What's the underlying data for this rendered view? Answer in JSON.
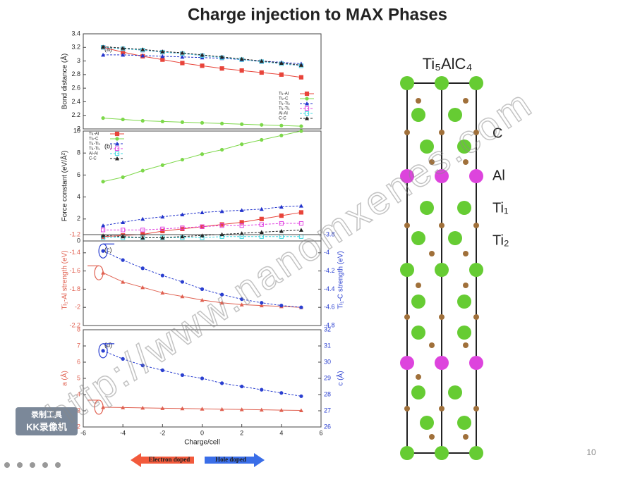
{
  "title": "Charge injection to MAX Phases",
  "structure": {
    "formula": "Ti₅AlC₄",
    "labels": [
      "C",
      "Al",
      "Ti₁",
      "Ti₂"
    ]
  },
  "watermark": "http://www.nanomxenes.com",
  "recorder": [
    "录制工具",
    "KK录像机"
  ],
  "doping": {
    "left": "Electron doped",
    "right": "Hole doped"
  },
  "page_number": 10,
  "chart_data": [
    {
      "type": "line",
      "panel": "(a)",
      "ylabel": "Bond distance (Å)",
      "legend": "lower right",
      "x": [
        -5,
        -4,
        -3,
        -2,
        -1,
        0,
        1,
        2,
        3,
        4,
        5
      ],
      "xlim": [
        -6,
        6
      ],
      "ylim": [
        2,
        3.4
      ],
      "yticks": [
        2,
        2.2,
        2.4,
        2.6,
        2.8,
        3,
        3.2,
        3.4
      ],
      "series": [
        {
          "name": "Ti₁-Al",
          "color": "#e8443a",
          "marker": "square",
          "dashed": false,
          "values": [
            3.2,
            3.13,
            3.07,
            3.02,
            2.97,
            2.93,
            2.89,
            2.86,
            2.83,
            2.8,
            2.76
          ]
        },
        {
          "name": "Ti₂-C",
          "color": "#7dd84a",
          "marker": "circle",
          "dashed": false,
          "values": [
            2.16,
            2.14,
            2.12,
            2.11,
            2.1,
            2.09,
            2.08,
            2.07,
            2.06,
            2.05,
            2.04
          ]
        },
        {
          "name": "Ti₁-Ti₂",
          "color": "#2233cc",
          "marker": "triangle",
          "dashed": true,
          "values": [
            3.09,
            3.09,
            3.08,
            3.07,
            3.06,
            3.05,
            3.04,
            3.02,
            3,
            2.98,
            2.96
          ]
        },
        {
          "name": "Ti₁-Ti₁",
          "color": "#e040e0",
          "marker": "open-square",
          "dashed": true,
          "values": [
            3.2,
            3.18,
            3.16,
            3.13,
            3.11,
            3.08,
            3.05,
            3.02,
            2.99,
            2.96,
            2.93
          ]
        },
        {
          "name": "Al-Al",
          "color": "#40d8e0",
          "marker": "open-square",
          "dashed": true,
          "values": [
            3.2,
            3.18,
            3.16,
            3.13,
            3.11,
            3.08,
            3.05,
            3.02,
            2.99,
            2.96,
            2.93
          ]
        },
        {
          "name": "C-C",
          "color": "#222222",
          "marker": "triangle",
          "dashed": true,
          "values": [
            3.21,
            3.19,
            3.17,
            3.14,
            3.12,
            3.09,
            3.06,
            3.03,
            3,
            2.97,
            2.94
          ]
        }
      ]
    },
    {
      "type": "line",
      "panel": "(b)",
      "ylabel": "Force constant (eV/Å²)",
      "legend": "upper left",
      "x": [
        -5,
        -4,
        -3,
        -2,
        -1,
        0,
        1,
        2,
        3,
        4,
        5
      ],
      "xlim": [
        -6,
        6
      ],
      "ylim": [
        0,
        10
      ],
      "yticks": [
        0,
        2,
        4,
        6,
        8,
        10
      ],
      "series": [
        {
          "name": "Ti₁-Al",
          "color": "#e8443a",
          "marker": "square",
          "dashed": false,
          "values": [
            0.4,
            0.5,
            0.6,
            0.9,
            1.1,
            1.3,
            1.5,
            1.7,
            2,
            2.3,
            2.6
          ]
        },
        {
          "name": "Ti₂-C",
          "color": "#7dd84a",
          "marker": "circle",
          "dashed": false,
          "values": [
            5.4,
            5.8,
            6.4,
            6.9,
            7.4,
            7.9,
            8.3,
            8.8,
            9.2,
            9.6,
            10
          ]
        },
        {
          "name": "Ti₁-Ti₂",
          "color": "#2233cc",
          "marker": "triangle",
          "dashed": true,
          "values": [
            1.4,
            1.7,
            2,
            2.2,
            2.4,
            2.6,
            2.7,
            2.8,
            2.9,
            3.1,
            3.2
          ]
        },
        {
          "name": "Ti₁-Ti₁",
          "color": "#e040e0",
          "marker": "open-square",
          "dashed": true,
          "values": [
            1,
            1,
            1,
            1.1,
            1.2,
            1.3,
            1.4,
            1.4,
            1.5,
            1.6,
            1.6
          ]
        },
        {
          "name": "Al-Al",
          "color": "#40d8e0",
          "marker": "open-square",
          "dashed": true,
          "values": [
            0.3,
            0.3,
            0.3,
            0.3,
            0.3,
            0.3,
            0.4,
            0.4,
            0.4,
            0.4,
            0.4
          ]
        },
        {
          "name": "C-C",
          "color": "#222222",
          "marker": "triangle",
          "dashed": true,
          "values": [
            0.5,
            0.4,
            0.3,
            0.3,
            0.4,
            0.5,
            0.6,
            0.7,
            0.8,
            0.9,
            1
          ]
        }
      ]
    },
    {
      "type": "line",
      "panel": "(c)",
      "ylabel": "Ti₁-Al strength (eV)",
      "y2label": "Ti₁-C strength (eV)",
      "x": [
        -5,
        -4,
        -3,
        -2,
        -1,
        0,
        1,
        2,
        3,
        4,
        5
      ],
      "xlim": [
        -6,
        6
      ],
      "ylim": [
        -2.2,
        -1.2
      ],
      "yticks": [
        -2.2,
        -2,
        -1.8,
        -1.6,
        -1.4,
        -1.2
      ],
      "y2lim": [
        -4.8,
        -3.8
      ],
      "y2ticks": [
        -4.8,
        -4.6,
        -4.4,
        -4.2,
        -4,
        -3.8
      ],
      "series": [
        {
          "color": "#e06050",
          "marker": "triangle",
          "dashed": false,
          "values": [
            -1.62,
            -1.72,
            -1.78,
            -1.84,
            -1.88,
            -1.92,
            -1.95,
            -1.97,
            -1.98,
            -1.99,
            -2
          ]
        },
        {
          "color": "#2a3fd0",
          "marker": "circle",
          "dashed": true,
          "axis": "y2",
          "values": [
            -3.98,
            -4.08,
            -4.17,
            -4.25,
            -4.32,
            -4.4,
            -4.46,
            -4.51,
            -4.55,
            -4.58,
            -4.6
          ]
        }
      ]
    },
    {
      "type": "line",
      "panel": "(d)",
      "ylabel": "a (Å)",
      "y2label": "c (Å)",
      "xlabel": "Charge/cell",
      "x": [
        -5,
        -4,
        -3,
        -2,
        -1,
        0,
        1,
        2,
        3,
        4,
        5
      ],
      "xlim": [
        -6,
        6
      ],
      "xticks": [
        -6,
        -4,
        -2,
        0,
        2,
        4,
        6
      ],
      "ylim": [
        2,
        8
      ],
      "yticks": [
        2,
        3,
        4,
        5,
        6,
        7,
        8
      ],
      "y2lim": [
        26,
        32
      ],
      "y2ticks": [
        26,
        27,
        28,
        29,
        30,
        31,
        32
      ],
      "series": [
        {
          "color": "#e06050",
          "marker": "triangle",
          "dashed": false,
          "values": [
            3.22,
            3.2,
            3.18,
            3.16,
            3.14,
            3.12,
            3.1,
            3.08,
            3.06,
            3.04,
            3.02
          ]
        },
        {
          "color": "#2a3fd0",
          "marker": "circle",
          "dashed": true,
          "axis": "y2",
          "values": [
            30.7,
            30.2,
            29.8,
            29.5,
            29.2,
            29,
            28.7,
            28.5,
            28.3,
            28.1,
            27.9
          ]
        }
      ]
    }
  ]
}
